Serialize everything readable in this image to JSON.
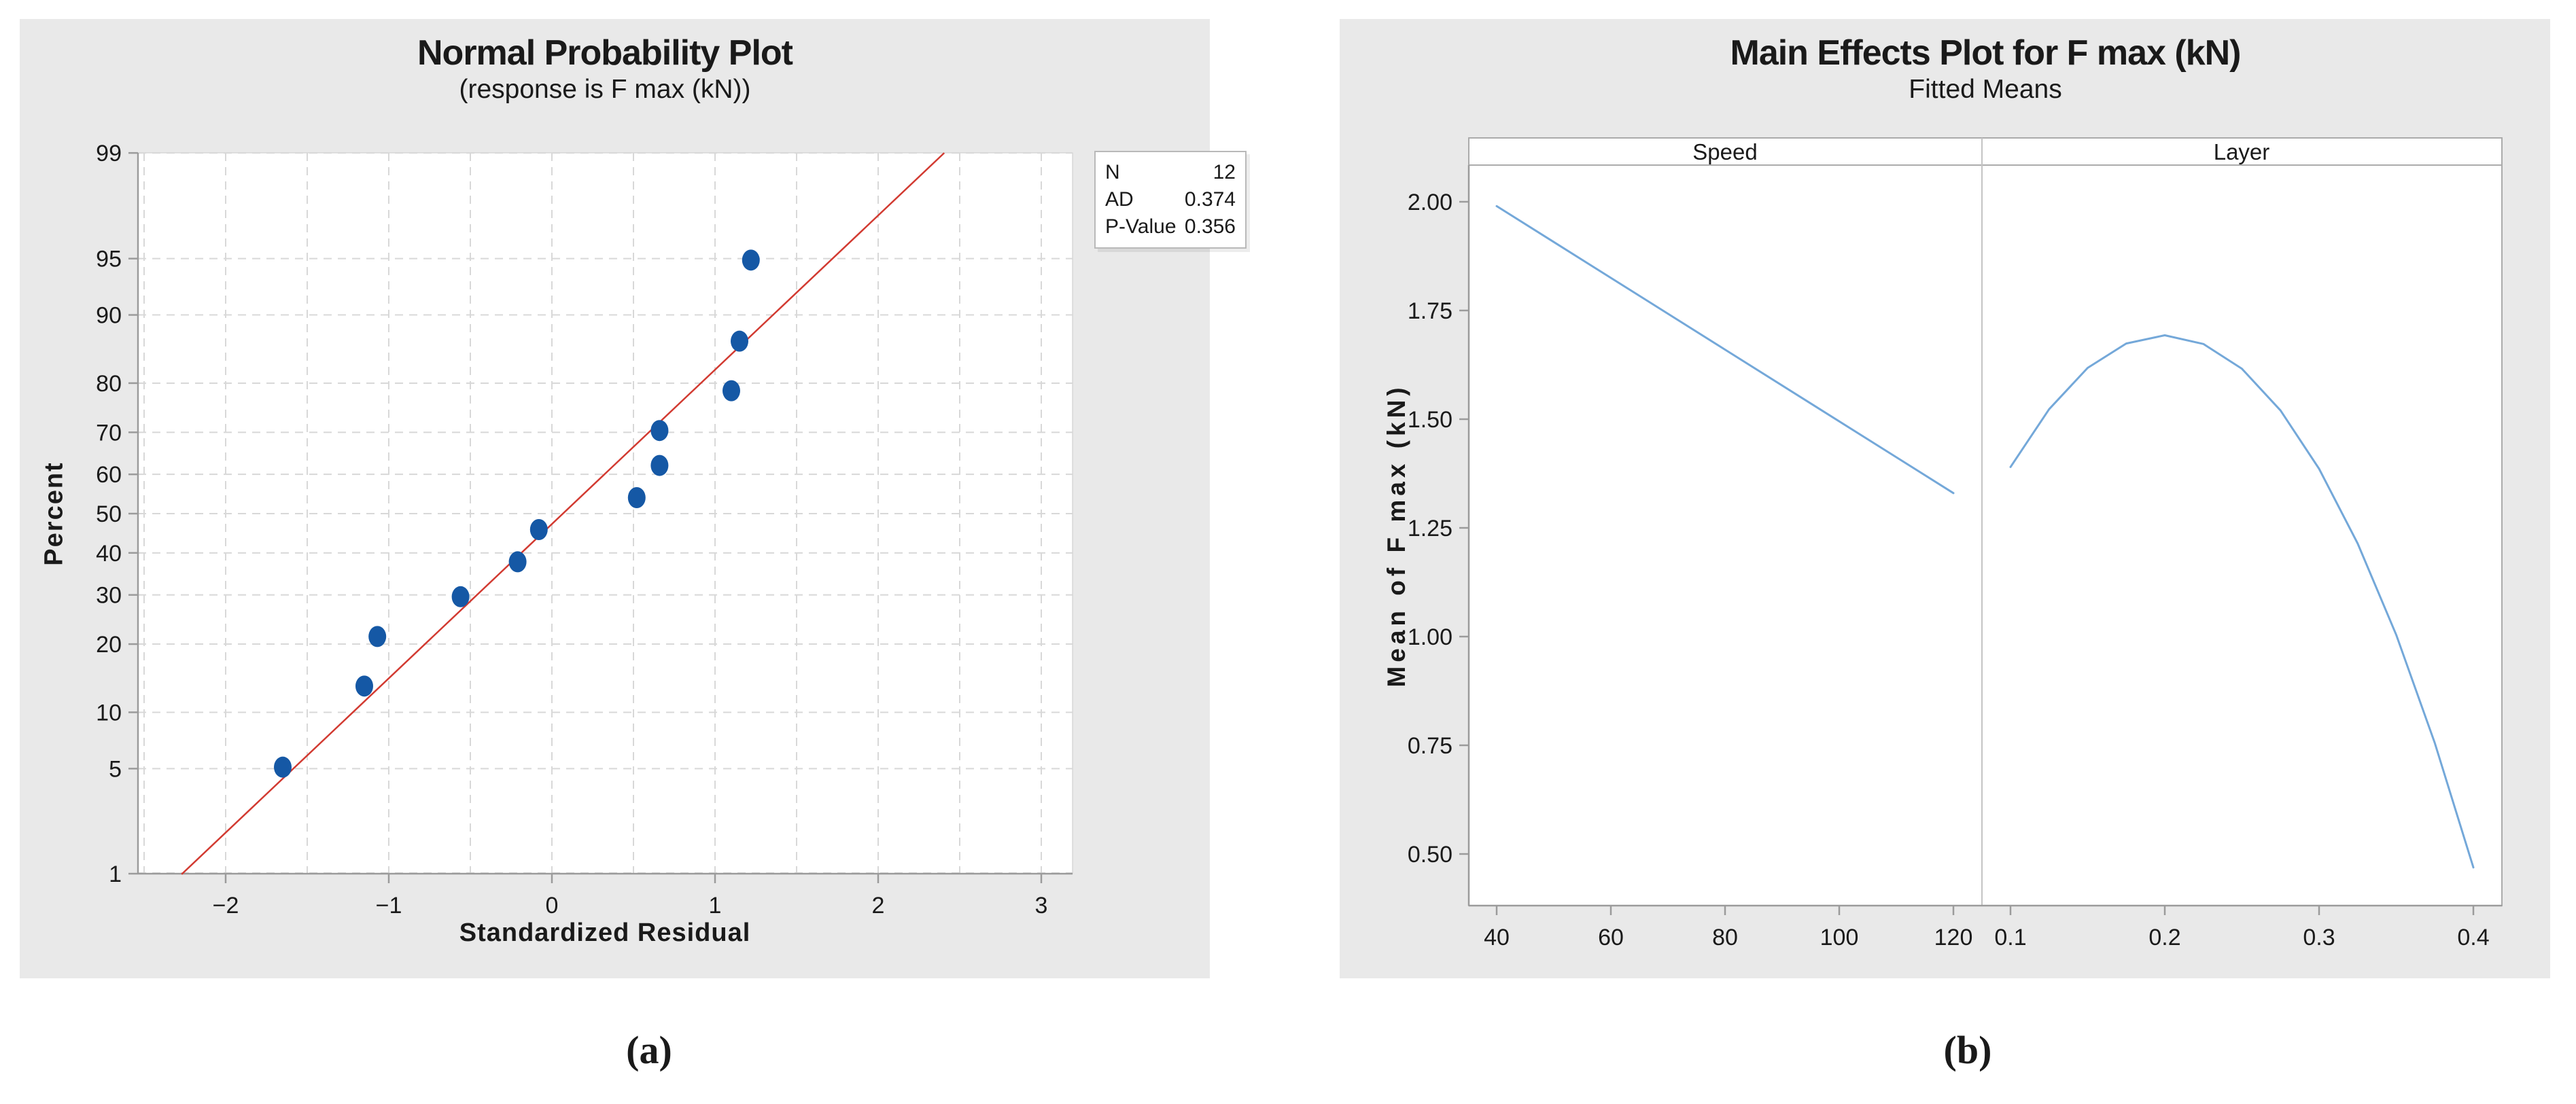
{
  "figure": {
    "cropped_top_text": "Normal Probability Plot",
    "captions": {
      "a": "(a)",
      "b": "(b)"
    }
  },
  "colors": {
    "panel_bg": "#e9e9e9",
    "plot_bg": "#ffffff",
    "grid": "#d8d8d8",
    "axis": "#9b9b9b",
    "frame": "#c9c9c9",
    "divider": "#c4c4c4",
    "strip_border": "#ababab",
    "scatter_point": "#1558a5",
    "fit_line": "#d23a31",
    "effects_line": "#74a8d9",
    "text": "#1a1a1a"
  },
  "chart_data": [
    {
      "id": "a",
      "type": "scatter",
      "title": "Normal Probability Plot",
      "subtitle": "(response is F max (kN))",
      "xlabel": "Standardized Residual",
      "ylabel": "Percent",
      "x_ticks": [
        "−2",
        "−1",
        "0",
        "1",
        "2",
        "3"
      ],
      "x_tick_values": [
        -2,
        -1,
        0,
        1,
        2,
        3
      ],
      "y_ticks_percent": [
        1,
        5,
        10,
        20,
        30,
        40,
        50,
        60,
        70,
        80,
        90,
        95,
        99
      ],
      "xlim": [
        -2.54,
        3.19
      ],
      "y_scale": "normal_probability",
      "grid": "dashed gray, vertical every 0.5 units, horizontal at labeled percents",
      "legend_position": "outside top-right",
      "points": [
        {
          "x": -1.65,
          "percent": 5.1
        },
        {
          "x": -1.15,
          "percent": 13.3
        },
        {
          "x": -1.07,
          "percent": 21.4
        },
        {
          "x": -0.56,
          "percent": 29.6
        },
        {
          "x": -0.21,
          "percent": 37.8
        },
        {
          "x": -0.08,
          "percent": 45.9
        },
        {
          "x": 0.52,
          "percent": 54.1
        },
        {
          "x": 0.66,
          "percent": 62.2
        },
        {
          "x": 0.66,
          "percent": 70.4
        },
        {
          "x": 1.1,
          "percent": 78.6
        },
        {
          "x": 1.15,
          "percent": 86.7
        },
        {
          "x": 1.22,
          "percent": 94.9
        }
      ],
      "fit_line": {
        "from": {
          "x": -2.27,
          "percent": 1
        },
        "to": {
          "x": 2.405,
          "percent": 99
        }
      },
      "stats_box": {
        "rows": [
          {
            "label": "N",
            "value": "12"
          },
          {
            "label": "AD",
            "value": "0.374"
          },
          {
            "label": "P-Value",
            "value": "0.356"
          }
        ]
      }
    },
    {
      "id": "b",
      "type": "line",
      "title": "Main Effects Plot for F max (kN)",
      "subtitle": "Fitted Means",
      "ylabel": "Mean of F max (kN)",
      "y_ticks": [
        "2.00",
        "1.75",
        "1.50",
        "1.25",
        "1.00",
        "0.75",
        "0.50"
      ],
      "y_tick_values": [
        2.0,
        1.75,
        1.5,
        1.25,
        1.0,
        0.75,
        0.5
      ],
      "ylim": [
        0.38,
        2.08
      ],
      "grid": "off",
      "panels": [
        {
          "label": "Speed",
          "x_ticks": [
            "40",
            "60",
            "80",
            "100",
            "120"
          ],
          "x_tick_values": [
            40,
            60,
            80,
            100,
            120
          ],
          "series": {
            "x": [
              40,
              120
            ],
            "y": [
              1.99,
              1.33
            ]
          }
        },
        {
          "label": "Layer",
          "x_ticks": [
            "0.1",
            "0.2",
            "0.3",
            "0.4"
          ],
          "x_tick_values": [
            0.1,
            0.2,
            0.3,
            0.4
          ],
          "series": {
            "x": [
              0.1,
              0.125,
              0.15,
              0.175,
              0.2,
              0.225,
              0.25,
              0.275,
              0.3,
              0.325,
              0.35,
              0.375,
              0.4
            ],
            "y": [
              1.39,
              1.523,
              1.618,
              1.674,
              1.693,
              1.673,
              1.616,
              1.52,
              1.386,
              1.214,
              1.004,
              0.755,
              0.469
            ]
          }
        }
      ]
    }
  ]
}
